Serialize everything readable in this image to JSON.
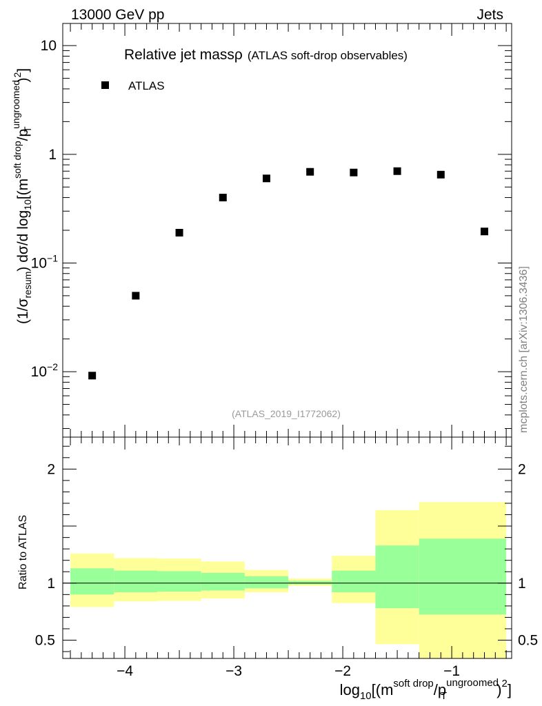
{
  "header": {
    "left": "13000 GeV pp",
    "right": "Jets"
  },
  "side_label": "mcplots.cern.ch [arXiv:1306.3436]",
  "chart_data": [
    {
      "type": "scatter",
      "title_main": "Relative jet mass",
      "title_rho": "ρ",
      "title_sub": "(ATLAS soft-drop observables)",
      "watermark": "(ATLAS_2019_I1772062)",
      "legend": [
        "ATLAS"
      ],
      "xlim": [
        -4.57,
        -0.45
      ],
      "ylim": [
        0.0025,
        16
      ],
      "yscale": "log",
      "ylabel": {
        "a": "(1/σ",
        "a_sub": "resum",
        "b": ") dσ/d log",
        "b_sub": "10",
        "c": "[(m",
        "c_sup": "soft drop",
        "d": "/p",
        "d_sup": "ungroomed",
        "d_sub": "T",
        "e": ")",
        "e_sup": "2",
        "f": "]"
      },
      "y_ticks": [
        {
          "value": 10,
          "label": "10"
        },
        {
          "value": 1,
          "label": "1"
        },
        {
          "value": 0.1,
          "base": "10",
          "exp": "−1"
        },
        {
          "value": 0.01,
          "base": "10",
          "exp": "−2"
        }
      ],
      "series": [
        {
          "name": "ATLAS",
          "x": [
            -4.3,
            -3.9,
            -3.5,
            -3.1,
            -2.7,
            -2.3,
            -1.9,
            -1.5,
            -1.1,
            -0.7
          ],
          "y": [
            0.0092,
            0.05,
            0.19,
            0.4,
            0.6,
            0.69,
            0.68,
            0.7,
            0.65,
            0.195
          ]
        }
      ]
    },
    {
      "type": "area",
      "ylabel": "Ratio to ATLAS",
      "xlim": [
        -4.57,
        -0.45
      ],
      "ylim": [
        0.34,
        2.28
      ],
      "xlabel": {
        "a": "log",
        "a_sub": "10",
        "b": "[(m",
        "b_sup": "soft drop",
        "c": "/p",
        "c_sup": "ungroomed",
        "c_sub": "T",
        "d": ")",
        "d_sup": "2",
        "e": "]"
      },
      "x_ticks": [
        {
          "value": -4,
          "label": "−4"
        },
        {
          "value": -3,
          "label": "−3"
        },
        {
          "value": -2,
          "label": "−2"
        },
        {
          "value": -1,
          "label": "−1"
        }
      ],
      "y_ticks": [
        {
          "value": 2,
          "label": "2"
        },
        {
          "value": 1,
          "label": "1"
        },
        {
          "value": 0.5,
          "label": "0.5"
        }
      ],
      "bands": [
        {
          "x0": -4.5,
          "x1": -4.1,
          "y_lo": 0.79,
          "y_hi": 1.26,
          "g_lo": 0.9,
          "g_hi": 1.13
        },
        {
          "x0": -4.1,
          "x1": -3.7,
          "y_lo": 0.84,
          "y_hi": 1.22,
          "g_lo": 0.92,
          "g_hi": 1.11
        },
        {
          "x0": -3.7,
          "x1": -3.3,
          "y_lo": 0.845,
          "y_hi": 1.215,
          "g_lo": 0.925,
          "g_hi": 1.105
        },
        {
          "x0": -3.3,
          "x1": -2.9,
          "y_lo": 0.865,
          "y_hi": 1.19,
          "g_lo": 0.935,
          "g_hi": 1.09
        },
        {
          "x0": -2.9,
          "x1": -2.5,
          "y_lo": 0.92,
          "y_hi": 1.115,
          "g_lo": 0.955,
          "g_hi": 1.06
        },
        {
          "x0": -2.5,
          "x1": -2.1,
          "y_lo": 0.975,
          "y_hi": 1.04,
          "g_lo": 0.99,
          "g_hi": 1.02
        },
        {
          "x0": -2.1,
          "x1": -1.7,
          "y_lo": 0.825,
          "y_hi": 1.24,
          "g_lo": 0.92,
          "g_hi": 1.11
        },
        {
          "x0": -1.7,
          "x1": -1.3,
          "y_lo": 0.465,
          "y_hi": 1.64,
          "g_lo": 0.78,
          "g_hi": 1.33
        },
        {
          "x0": -1.3,
          "x1": -0.5,
          "y_lo": 0.34,
          "y_hi": 1.71,
          "g_lo": 0.725,
          "g_hi": 1.39
        }
      ],
      "reference_line": 1
    }
  ]
}
